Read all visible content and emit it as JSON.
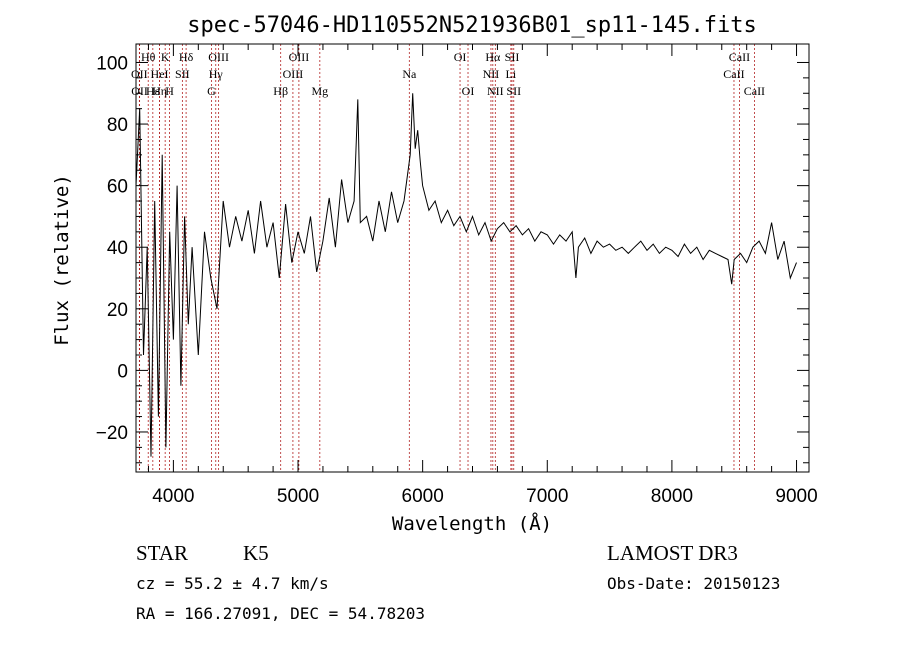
{
  "chart_data": {
    "type": "line",
    "title": "spec-57046-HD110552N521936B01_sp11-145.fits",
    "xlabel": "Wavelength (Å)",
    "ylabel": "Flux (relative)",
    "xlim": [
      3700,
      9100
    ],
    "ylim": [
      -33,
      106
    ],
    "xticks": [
      4000,
      5000,
      6000,
      7000,
      8000,
      9000
    ],
    "xtick_labels": [
      "4000",
      "5000",
      "6000",
      "7000",
      "8000",
      "9000"
    ],
    "yticks": [
      -20,
      0,
      20,
      40,
      60,
      80,
      100
    ],
    "ytick_labels": [
      "−20",
      "0",
      "20",
      "40",
      "60",
      "80",
      "100"
    ],
    "grid": false,
    "spectrum_color": "#000000",
    "line_marker_color": "#b22222",
    "series": [
      {
        "name": "flux",
        "x": [
          3700,
          3730,
          3760,
          3790,
          3820,
          3850,
          3880,
          3910,
          3940,
          3970,
          4000,
          4030,
          4060,
          4090,
          4120,
          4150,
          4200,
          4250,
          4300,
          4350,
          4400,
          4450,
          4500,
          4550,
          4600,
          4650,
          4700,
          4750,
          4800,
          4850,
          4900,
          4950,
          5000,
          5050,
          5100,
          5150,
          5200,
          5250,
          5300,
          5350,
          5400,
          5450,
          5480,
          5500,
          5550,
          5600,
          5650,
          5700,
          5750,
          5800,
          5850,
          5900,
          5920,
          5940,
          5960,
          5980,
          6000,
          6050,
          6100,
          6150,
          6200,
          6250,
          6300,
          6350,
          6400,
          6450,
          6500,
          6550,
          6600,
          6650,
          6700,
          6750,
          6800,
          6850,
          6900,
          6950,
          7000,
          7050,
          7100,
          7150,
          7200,
          7230,
          7250,
          7300,
          7350,
          7400,
          7450,
          7500,
          7550,
          7600,
          7650,
          7700,
          7750,
          7800,
          7850,
          7900,
          7950,
          8000,
          8050,
          8100,
          8150,
          8200,
          8250,
          8300,
          8350,
          8400,
          8450,
          8480,
          8500,
          8550,
          8600,
          8650,
          8700,
          8750,
          8800,
          8850,
          8900,
          8950,
          9000
        ],
        "values": [
          60,
          85,
          5,
          40,
          -28,
          55,
          -15,
          70,
          -25,
          45,
          10,
          60,
          -5,
          50,
          15,
          40,
          5,
          45,
          30,
          20,
          55,
          40,
          50,
          42,
          52,
          38,
          55,
          40,
          48,
          30,
          54,
          35,
          45,
          38,
          50,
          32,
          42,
          56,
          40,
          62,
          48,
          55,
          88,
          48,
          50,
          42,
          55,
          45,
          58,
          48,
          55,
          70,
          90,
          72,
          78,
          68,
          60,
          52,
          55,
          48,
          52,
          47,
          50,
          45,
          50,
          44,
          48,
          42,
          46,
          48,
          45,
          47,
          44,
          46,
          42,
          45,
          44,
          41,
          44,
          42,
          45,
          30,
          40,
          43,
          38,
          42,
          40,
          41,
          39,
          40,
          38,
          40,
          42,
          39,
          41,
          38,
          40,
          39,
          37,
          41,
          38,
          40,
          36,
          39,
          38,
          37,
          36,
          28,
          36,
          38,
          35,
          40,
          42,
          38,
          48,
          36,
          42,
          30,
          35
        ]
      }
    ],
    "lines": [
      {
        "name": "Hθ",
        "wavelength": 3798,
        "row": 0
      },
      {
        "name": "K",
        "wavelength": 3934,
        "row": 0
      },
      {
        "name": "Hδ",
        "wavelength": 4102,
        "row": 0
      },
      {
        "name": "OIII",
        "wavelength": 4363,
        "row": 0
      },
      {
        "name": "OIII",
        "wavelength": 5007,
        "row": 0
      },
      {
        "name": "OI",
        "wavelength": 6300,
        "row": 0
      },
      {
        "name": "Hα",
        "wavelength": 6563,
        "row": 0
      },
      {
        "name": "SII",
        "wavelength": 6717,
        "row": 0
      },
      {
        "name": "CaII",
        "wavelength": 8542,
        "row": 0
      },
      {
        "name": "OII",
        "wavelength": 3727,
        "row": 1
      },
      {
        "name": "HeI",
        "wavelength": 3889,
        "row": 1
      },
      {
        "name": "SII",
        "wavelength": 4072,
        "row": 1
      },
      {
        "name": "Hγ",
        "wavelength": 4340,
        "row": 1
      },
      {
        "name": "OIII",
        "wavelength": 4959,
        "row": 1
      },
      {
        "name": "Na",
        "wavelength": 5893,
        "row": 1
      },
      {
        "name": "NII",
        "wavelength": 6548,
        "row": 1
      },
      {
        "name": "Li",
        "wavelength": 6708,
        "row": 1
      },
      {
        "name": "CaII",
        "wavelength": 8498,
        "row": 1
      },
      {
        "name": "OII",
        "wavelength": 3729,
        "row": 2
      },
      {
        "name": "Hε",
        "wavelength": 3835,
        "row": 2
      },
      {
        "name": "Hη",
        "wavelength": 3889,
        "row": 2
      },
      {
        "name": "H",
        "wavelength": 3969,
        "row": 2
      },
      {
        "name": "G",
        "wavelength": 4305,
        "row": 2
      },
      {
        "name": "Hβ",
        "wavelength": 4861,
        "row": 2
      },
      {
        "name": "Mg",
        "wavelength": 5175,
        "row": 2
      },
      {
        "name": "OI",
        "wavelength": 6364,
        "row": 2
      },
      {
        "name": "NII",
        "wavelength": 6583,
        "row": 2
      },
      {
        "name": "SII",
        "wavelength": 6731,
        "row": 2
      },
      {
        "name": "CaII",
        "wavelength": 8662,
        "row": 2
      }
    ]
  },
  "info": {
    "class_label": "STAR",
    "subclass": "K5",
    "survey": "LAMOST DR3",
    "cz": "cz = 55.2 ± 4.7 km/s",
    "obs_date": "Obs-Date: 20150123",
    "coords": "RA = 166.27091, DEC =  54.78203"
  }
}
